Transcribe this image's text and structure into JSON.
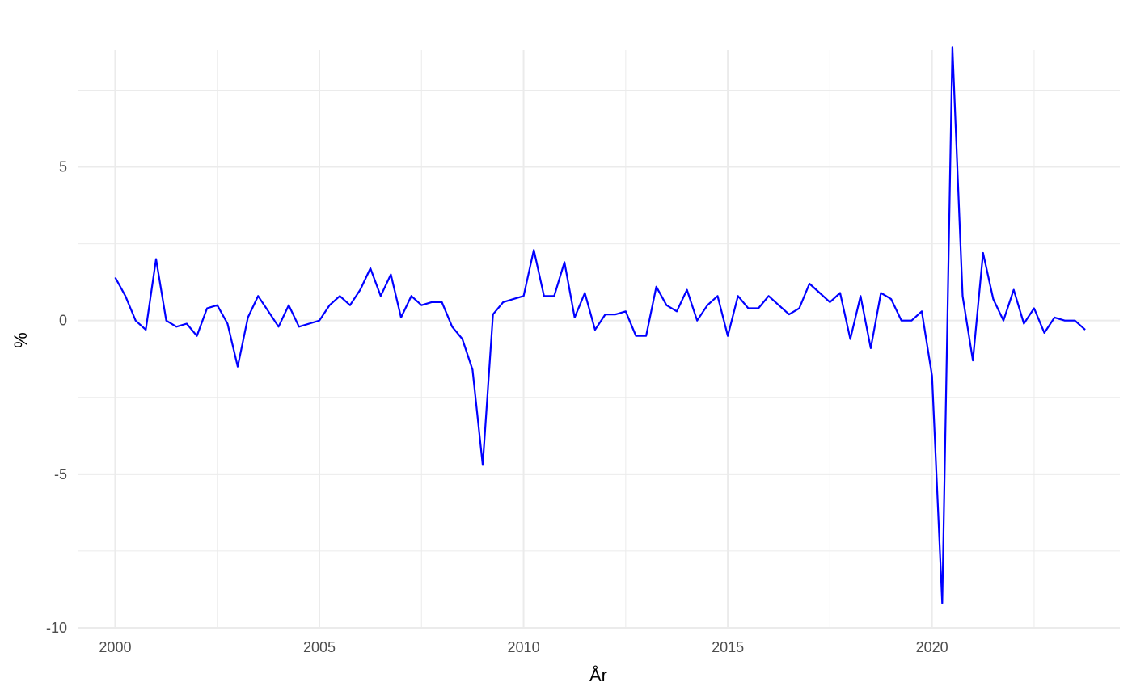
{
  "chart_data": {
    "type": "line",
    "title": "",
    "xlabel": "År",
    "ylabel": "%",
    "xlim": [
      1999.1,
      2024.6
    ],
    "ylim": [
      -10,
      8.8
    ],
    "x_ticks": [
      2000,
      2005,
      2010,
      2015,
      2020
    ],
    "x_tick_labels": [
      "2000",
      "2005",
      "2010",
      "2015",
      "2020"
    ],
    "y_ticks": [
      -10,
      -5,
      0,
      5
    ],
    "y_tick_labels": [
      "-10",
      "-5",
      "0",
      "5"
    ],
    "x_minor_ticks": [
      2002.5,
      2007.5,
      2012.5,
      2017.5,
      2022.5
    ],
    "y_minor_ticks": [
      -7.5,
      -2.5,
      2.5,
      7.5
    ],
    "grid": true,
    "legend": "none",
    "colors": {
      "series": "#0000ff",
      "grid": "#ebebeb",
      "tick_text": "#4d4d4d",
      "title_text": "#000000"
    },
    "series": [
      {
        "x_start": 2000.0,
        "x_step": 0.25,
        "values": [
          1.4,
          0.8,
          0.0,
          -0.3,
          2.0,
          0.0,
          -0.2,
          -0.1,
          -0.5,
          0.4,
          0.5,
          -0.1,
          -1.5,
          0.1,
          0.8,
          0.3,
          -0.2,
          0.5,
          -0.2,
          -0.1,
          0.0,
          0.5,
          0.8,
          0.5,
          1.0,
          1.7,
          0.8,
          1.5,
          0.1,
          0.8,
          0.5,
          0.6,
          0.6,
          -0.2,
          -0.6,
          -1.6,
          -4.7,
          0.2,
          0.6,
          0.7,
          0.8,
          2.3,
          0.8,
          0.8,
          1.9,
          0.1,
          0.9,
          -0.3,
          0.2,
          0.2,
          0.3,
          -0.5,
          -0.5,
          1.1,
          0.5,
          0.3,
          1.0,
          0.0,
          0.5,
          0.8,
          -0.5,
          0.8,
          0.4,
          0.4,
          0.8,
          0.5,
          0.2,
          0.4,
          1.2,
          0.9,
          0.6,
          0.9,
          -0.6,
          0.8,
          -0.9,
          0.9,
          0.7,
          0.0,
          0.0,
          0.3,
          -1.8,
          -9.2,
          8.9,
          0.8,
          -1.3,
          2.2,
          0.7,
          0.0,
          1.0,
          -0.1,
          0.4,
          -0.4,
          0.1,
          0.0,
          0.0,
          -0.3
        ]
      }
    ]
  }
}
